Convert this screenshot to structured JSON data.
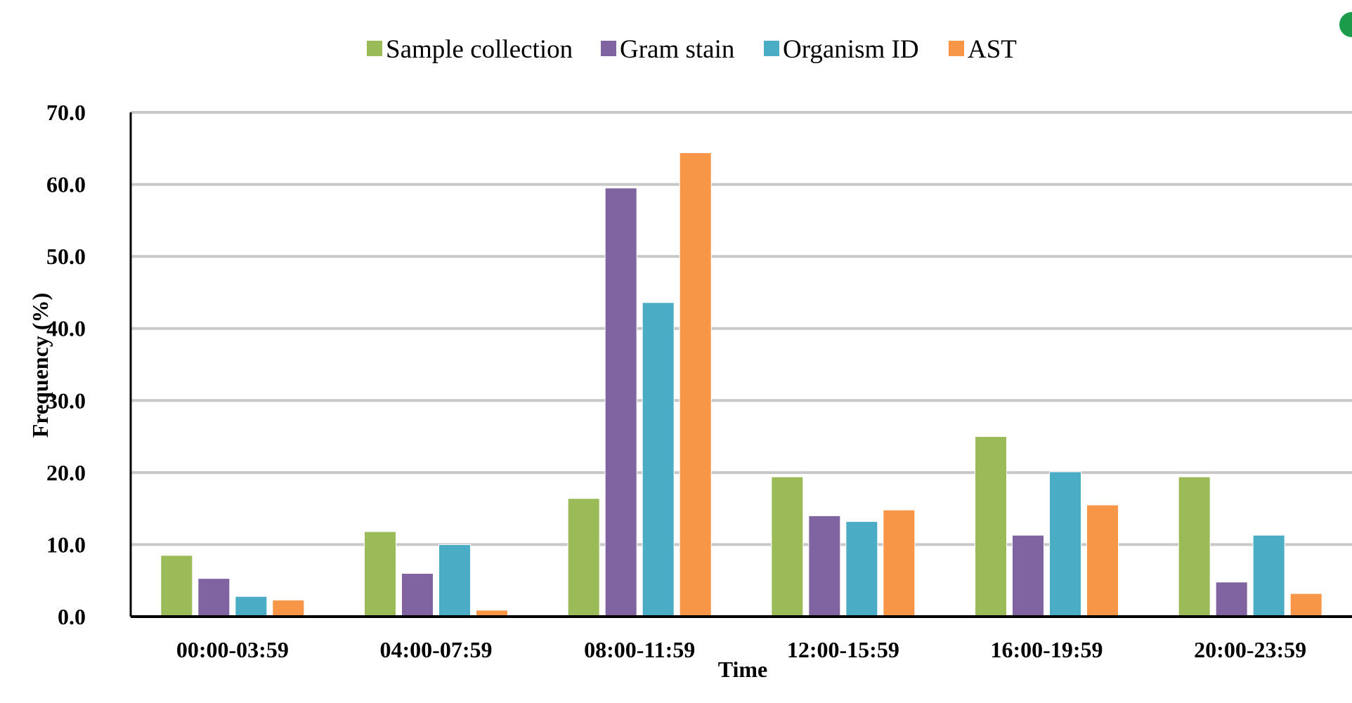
{
  "chart_data": {
    "type": "bar",
    "categories": [
      "00:00-03:59",
      "04:00-07:59",
      "08:00-11:59",
      "12:00-15:59",
      "16:00-19:59",
      "20:00-23:59"
    ],
    "series": [
      {
        "name": "Sample collection",
        "color": "#9bbb59",
        "values": [
          8.5,
          11.8,
          16.4,
          19.4,
          25.0,
          19.4
        ]
      },
      {
        "name": "Gram stain",
        "color": "#8064a2",
        "values": [
          5.3,
          6.0,
          59.5,
          14.0,
          11.3,
          4.8
        ]
      },
      {
        "name": "Organism ID",
        "color": "#4bacc6",
        "values": [
          2.8,
          10.0,
          43.6,
          13.2,
          20.1,
          11.3
        ]
      },
      {
        "name": "AST",
        "color": "#f79646",
        "values": [
          2.3,
          0.9,
          64.4,
          14.8,
          15.5,
          3.2
        ]
      }
    ],
    "xlabel": "Time",
    "ylabel": "Frequency (%)",
    "ylim": [
      0,
      70
    ],
    "yticks": [
      "0.0",
      "10.0",
      "20.0",
      "30.0",
      "40.0",
      "50.0",
      "60.0",
      "70.0"
    ],
    "grid": true,
    "legend_position": "top-center"
  }
}
